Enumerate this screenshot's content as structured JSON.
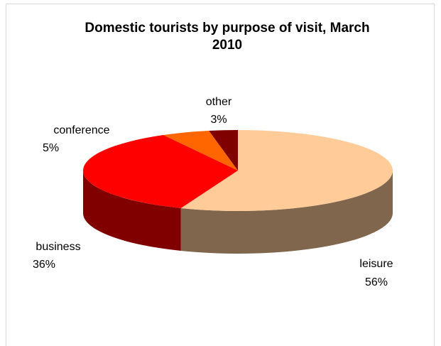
{
  "chart_data": {
    "type": "pie3d",
    "title": "Domestic tourists by purpose of visit, March 2010",
    "categories": [
      "leisure",
      "business",
      "conference",
      "other"
    ],
    "values": [
      56,
      36,
      5,
      3
    ],
    "value_labels": [
      "56%",
      "36%",
      "5%",
      "3%"
    ],
    "colors": [
      "#FFCC99",
      "#FF0000",
      "#FF6600",
      "#800000"
    ]
  }
}
